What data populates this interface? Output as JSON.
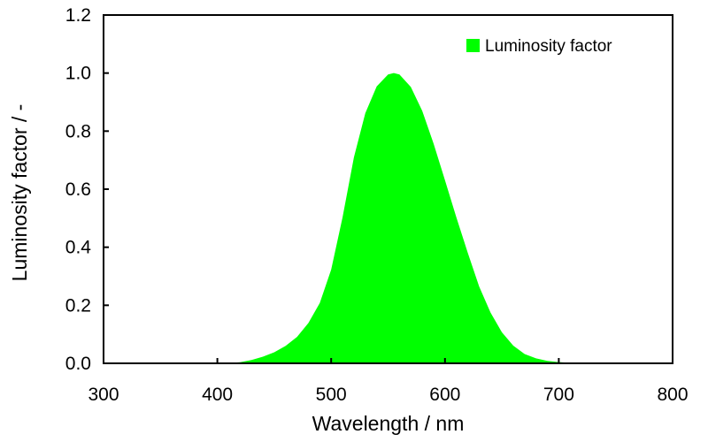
{
  "chart_data": {
    "type": "area",
    "title": "",
    "xlabel": "Wavelength / nm",
    "ylabel": "Luminosity factor / -",
    "xlim": [
      300,
      800
    ],
    "ylim": [
      0,
      1.2
    ],
    "x_ticks": [
      "300",
      "400",
      "500",
      "600",
      "700",
      "800"
    ],
    "y_ticks": [
      "0.0",
      "0.2",
      "0.4",
      "0.6",
      "0.8",
      "1.0",
      "1.2"
    ],
    "grid": false,
    "legend_position": "top-right",
    "series": [
      {
        "name": "Luminosity factor",
        "color": "#00ff00",
        "x": [
          380,
          390,
          400,
          410,
          420,
          430,
          440,
          450,
          460,
          470,
          480,
          490,
          500,
          510,
          520,
          530,
          540,
          550,
          555,
          560,
          570,
          580,
          590,
          600,
          610,
          620,
          630,
          640,
          650,
          660,
          670,
          680,
          690,
          700,
          710,
          720,
          730,
          740,
          750,
          760,
          770,
          780
        ],
        "y": [
          4e-05,
          0.00012,
          0.0004,
          0.0012,
          0.004,
          0.0116,
          0.023,
          0.038,
          0.06,
          0.091,
          0.139,
          0.208,
          0.323,
          0.503,
          0.71,
          0.862,
          0.954,
          0.995,
          1.0,
          0.995,
          0.952,
          0.87,
          0.757,
          0.631,
          0.503,
          0.381,
          0.265,
          0.175,
          0.107,
          0.061,
          0.032,
          0.017,
          0.0082,
          0.0041,
          0.0021,
          0.00105,
          0.00052,
          0.00025,
          0.00012,
          6e-05,
          3e-05,
          1.5e-05
        ]
      }
    ]
  }
}
